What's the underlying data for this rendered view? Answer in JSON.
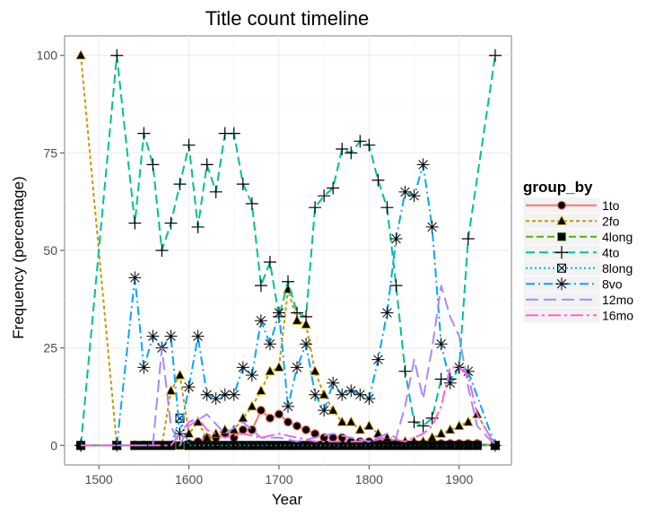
{
  "chart_data": {
    "type": "line",
    "title": "Title count timeline",
    "xlabel": "Year",
    "ylabel": "Frequency (percentage)",
    "xlim": [
      1462,
      1958
    ],
    "ylim": [
      -5,
      105
    ],
    "x_ticks": [
      1500,
      1600,
      1700,
      1800,
      1900
    ],
    "y_ticks": [
      0,
      25,
      50,
      75,
      100
    ],
    "x_tick_labels": [
      "1500",
      "1600",
      "1700",
      "1800",
      "1900"
    ],
    "y_tick_labels": [
      "0",
      "25",
      "50",
      "75",
      "100"
    ],
    "grid": true,
    "legend": {
      "title": "group_by",
      "position": "right"
    },
    "series": [
      {
        "name": "1to",
        "color": "#F8766D",
        "dash": "",
        "marker": "circle",
        "x": [
          1480,
          1520,
          1540,
          1550,
          1560,
          1570,
          1580,
          1590,
          1600,
          1610,
          1620,
          1630,
          1640,
          1650,
          1660,
          1670,
          1680,
          1690,
          1700,
          1710,
          1720,
          1730,
          1740,
          1750,
          1760,
          1770,
          1780,
          1790,
          1800,
          1810,
          1820,
          1830,
          1840,
          1850,
          1860,
          1870,
          1880,
          1890,
          1900,
          1910,
          1920,
          1940
        ],
        "y": [
          0,
          0,
          0,
          0,
          0,
          0,
          0,
          0,
          0.5,
          1,
          2,
          2,
          3,
          2,
          4,
          4,
          9,
          7,
          8,
          6,
          5,
          4,
          3,
          2,
          2,
          2,
          1,
          1,
          1,
          1,
          1,
          0.5,
          0.5,
          0.5,
          0.5,
          0.5,
          0.5,
          0.5,
          0.5,
          0.5,
          0.5,
          0
        ]
      },
      {
        "name": "2fo",
        "color": "#C49A00",
        "dash": "4,3",
        "marker": "triangle",
        "x": [
          1480,
          1520,
          1540,
          1550,
          1560,
          1570,
          1580,
          1590,
          1600,
          1610,
          1620,
          1630,
          1640,
          1650,
          1660,
          1670,
          1680,
          1690,
          1700,
          1710,
          1720,
          1730,
          1740,
          1750,
          1760,
          1770,
          1780,
          1790,
          1800,
          1810,
          1820,
          1830,
          1840,
          1850,
          1860,
          1870,
          1880,
          1890,
          1900,
          1910,
          1920,
          1940
        ],
        "y": [
          100,
          0,
          0,
          0,
          0,
          0,
          14,
          18,
          3,
          6,
          2,
          3,
          4,
          4,
          7,
          10,
          14,
          19,
          20,
          40,
          32,
          31,
          19,
          13,
          9,
          6,
          6,
          4,
          5,
          3,
          2,
          1,
          1,
          1,
          1,
          2,
          3,
          4,
          5,
          6,
          8,
          0
        ]
      },
      {
        "name": "4long",
        "color": "#53B400",
        "dash": "8,4",
        "marker": "square",
        "x": [
          1480,
          1520,
          1540,
          1550,
          1560,
          1570,
          1580,
          1590,
          1600,
          1610,
          1620,
          1630,
          1640,
          1650,
          1660,
          1670,
          1680,
          1690,
          1700,
          1710,
          1720,
          1730,
          1740,
          1750,
          1760,
          1770,
          1780,
          1790,
          1800,
          1810,
          1820,
          1830,
          1840,
          1850,
          1860,
          1870,
          1880,
          1890,
          1900,
          1910,
          1920,
          1940
        ],
        "y": [
          0,
          0,
          0,
          0,
          0,
          0,
          0,
          0,
          0,
          0,
          0,
          0,
          0,
          0,
          0,
          0,
          0,
          0,
          0,
          0,
          0,
          0,
          0,
          0,
          0,
          0,
          0,
          0,
          0,
          0,
          0,
          0,
          0,
          0,
          0,
          0,
          0,
          0,
          0,
          0,
          0,
          0
        ]
      },
      {
        "name": "4to",
        "color": "#00C094",
        "dash": "10,5",
        "marker": "plus",
        "x": [
          1480,
          1520,
          1540,
          1550,
          1560,
          1570,
          1580,
          1590,
          1600,
          1610,
          1620,
          1630,
          1640,
          1650,
          1660,
          1670,
          1680,
          1690,
          1700,
          1710,
          1720,
          1730,
          1740,
          1750,
          1760,
          1770,
          1780,
          1790,
          1800,
          1810,
          1820,
          1830,
          1840,
          1850,
          1860,
          1870,
          1880,
          1890,
          1900,
          1910,
          1940
        ],
        "y": [
          0,
          100,
          57,
          80,
          72,
          50,
          57,
          67,
          77,
          56,
          72,
          65,
          80,
          80,
          67,
          62,
          41,
          47,
          33,
          42,
          34,
          33,
          61,
          64,
          66,
          76,
          75,
          78,
          77,
          68,
          61,
          41,
          19,
          6,
          5,
          7,
          17,
          17,
          20,
          53,
          100
        ]
      },
      {
        "name": "8long",
        "color": "#00B6EB",
        "dash": "2,3",
        "marker": "boxx",
        "x": [
          1480,
          1520,
          1540,
          1550,
          1560,
          1570,
          1580,
          1590,
          1600,
          1610,
          1620,
          1630,
          1640,
          1650,
          1660,
          1670,
          1680,
          1690,
          1700,
          1710,
          1720,
          1730,
          1740,
          1750,
          1760,
          1770,
          1780,
          1790,
          1800,
          1810,
          1820,
          1830,
          1840,
          1850,
          1860,
          1870,
          1880,
          1890,
          1900,
          1910,
          1920,
          1940
        ],
        "y": [
          0,
          0,
          0,
          0,
          0,
          0,
          0,
          7,
          0,
          0,
          0,
          0,
          0,
          0,
          0,
          0,
          0,
          0,
          0,
          0,
          0,
          0,
          0,
          0,
          0,
          0,
          0,
          0,
          0,
          0,
          0,
          0,
          0,
          0,
          0,
          0,
          0,
          0,
          0,
          0,
          0,
          0
        ]
      },
      {
        "name": "8vo",
        "color": "#06A4FF",
        "dash": "10,4,2,4",
        "marker": "star",
        "x": [
          1520,
          1540,
          1550,
          1560,
          1570,
          1580,
          1590,
          1600,
          1610,
          1620,
          1630,
          1640,
          1650,
          1660,
          1670,
          1680,
          1690,
          1700,
          1710,
          1720,
          1730,
          1740,
          1750,
          1760,
          1770,
          1780,
          1790,
          1800,
          1810,
          1820,
          1830,
          1840,
          1850,
          1860,
          1870,
          1880,
          1890,
          1900,
          1910,
          1940
        ],
        "y": [
          0,
          43,
          20,
          28,
          25,
          28,
          3,
          15,
          28,
          13,
          12,
          13,
          13,
          20,
          18,
          32,
          26,
          34,
          10,
          20,
          26,
          13,
          9,
          16,
          13,
          14,
          13,
          12,
          22,
          34,
          53,
          65,
          64,
          72,
          56,
          26,
          16,
          20,
          19,
          0
        ]
      },
      {
        "name": "12mo",
        "color": "#A58AFF",
        "dash": "14,6",
        "marker": "",
        "x": [
          1480,
          1520,
          1540,
          1560,
          1570,
          1580,
          1590,
          1600,
          1620,
          1640,
          1660,
          1680,
          1700,
          1720,
          1740,
          1760,
          1780,
          1800,
          1820,
          1830,
          1840,
          1850,
          1860,
          1870,
          1880,
          1890,
          1900,
          1910,
          1920,
          1940
        ],
        "y": [
          0,
          0,
          0,
          0,
          25,
          5,
          0,
          5,
          8,
          3,
          6,
          2,
          2,
          1,
          2,
          3,
          2,
          1,
          3,
          2,
          10,
          22,
          12,
          25,
          41,
          33,
          28,
          15,
          5,
          0
        ]
      },
      {
        "name": "16mo",
        "color": "#FB61D7",
        "dash": "14,4,3,4",
        "marker": "",
        "x": [
          1480,
          1520,
          1580,
          1590,
          1600,
          1610,
          1620,
          1640,
          1660,
          1680,
          1700,
          1720,
          1740,
          1760,
          1780,
          1800,
          1820,
          1840,
          1860,
          1870,
          1880,
          1890,
          1900,
          1910,
          1920,
          1940
        ],
        "y": [
          0,
          0,
          0,
          3,
          6,
          7,
          4,
          2,
          3,
          2,
          3,
          2,
          1,
          1,
          1,
          1,
          2,
          1,
          3,
          5,
          10,
          20,
          20,
          18,
          8,
          0
        ]
      }
    ]
  }
}
